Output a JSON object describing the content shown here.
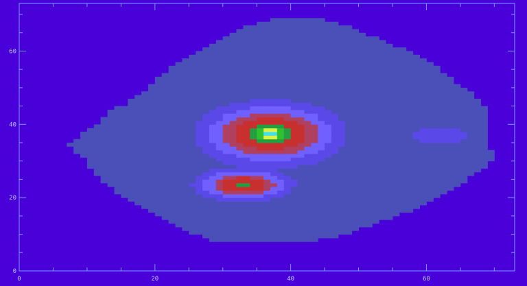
{
  "chart_data": {
    "type": "heatmap",
    "title": "",
    "xlabel": "",
    "ylabel": "",
    "xlim": [
      0,
      73
    ],
    "ylim": [
      0,
      73
    ],
    "x_ticks": [
      0,
      20,
      40,
      60
    ],
    "y_ticks": [
      0,
      20,
      40,
      60
    ],
    "x_tick_labels": [
      "0",
      "20",
      "40",
      "60"
    ],
    "y_tick_labels": [
      "0",
      "20",
      "40",
      "60"
    ],
    "grid": false,
    "legend": "none",
    "background_color": "#4a00d8",
    "frame_color": "#7a9cff",
    "colormap": [
      "#4a00d8",
      "#4a50b8",
      "#5a48e8",
      "#7060ff",
      "#b04060",
      "#c83030",
      "#20a040",
      "#30c030",
      "#e0f040",
      "#40e0f0"
    ],
    "shape_outline_y": [
      8,
      10,
      13,
      16,
      19,
      22,
      25,
      28,
      31,
      34,
      37,
      40,
      43,
      46,
      49,
      52,
      55,
      58,
      61,
      64,
      67,
      69
    ],
    "shape_outline_half_width": [
      7,
      11,
      15,
      19,
      22,
      25,
      27,
      29,
      30,
      31,
      30,
      29,
      28,
      26,
      24,
      22,
      20,
      17,
      14,
      11,
      7,
      3
    ],
    "shape_outline_center_x": [
      36,
      37,
      37.5,
      38,
      38.5,
      39,
      39,
      39.5,
      40,
      38,
      39,
      40.5,
      41,
      42,
      42.5,
      42,
      42,
      42,
      42,
      41,
      41,
      41
    ],
    "features": [
      {
        "x": 37,
        "y": 37.5,
        "peak": 9,
        "sx": 1.6,
        "sy": 1.4
      },
      {
        "x": 37,
        "y": 37.5,
        "peak": 7,
        "sx": 3.0,
        "sy": 2.6
      },
      {
        "x": 37,
        "y": 37.5,
        "peak": 5,
        "sx": 6.0,
        "sy": 5.0
      },
      {
        "x": 33,
        "y": 23.5,
        "peak": 5,
        "sx": 4.2,
        "sy": 2.6
      },
      {
        "x": 62,
        "y": 37,
        "peak": 2.3,
        "sx": 4.5,
        "sy": 2.5
      }
    ]
  }
}
